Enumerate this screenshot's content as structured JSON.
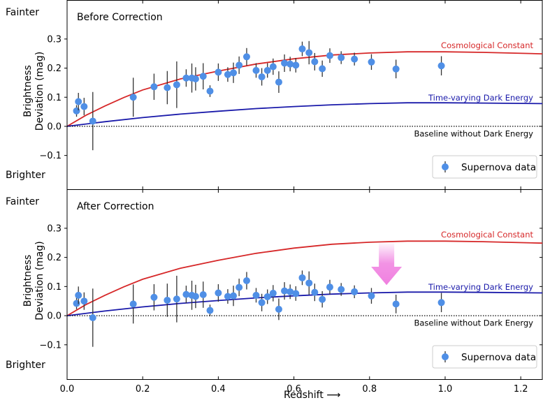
{
  "chart_data": [
    {
      "type": "scatter",
      "title": "Before Correction",
      "ylabel": "Brightness Deviation (mag)",
      "xlabel": "",
      "xlim": [
        0,
        1.257
      ],
      "ylim": [
        -0.216,
        0.434
      ],
      "yticks": [
        -0.1,
        0.0,
        0.1,
        0.2,
        0.3
      ],
      "ytick_labels": [
        "−0.1",
        "0.0",
        "0.1",
        "0.2",
        "0.3"
      ],
      "side_labels": {
        "top": "Fainter",
        "bottom": "Brighter"
      },
      "grid": false,
      "legend": {
        "placement": "lower-right",
        "entries": [
          "Supernova data"
        ]
      },
      "series": [
        {
          "name": "Supernova data",
          "color": "#4f8fe6",
          "points": [
            [
              0.025,
              0.053,
              0.02
            ],
            [
              0.03,
              0.085,
              0.03
            ],
            [
              0.045,
              0.068,
              0.03
            ],
            [
              0.068,
              0.018,
              0.1
            ],
            [
              0.175,
              0.1,
              0.067
            ],
            [
              0.23,
              0.136,
              0.045
            ],
            [
              0.265,
              0.133,
              0.057
            ],
            [
              0.29,
              0.143,
              0.08
            ],
            [
              0.315,
              0.166,
              0.03
            ],
            [
              0.33,
              0.166,
              0.05
            ],
            [
              0.34,
              0.163,
              0.04
            ],
            [
              0.36,
              0.172,
              0.045
            ],
            [
              0.378,
              0.121,
              0.02
            ],
            [
              0.4,
              0.186,
              0.03
            ],
            [
              0.425,
              0.178,
              0.025
            ],
            [
              0.44,
              0.184,
              0.035
            ],
            [
              0.455,
              0.21,
              0.03
            ],
            [
              0.475,
              0.239,
              0.03
            ],
            [
              0.5,
              0.192,
              0.025
            ],
            [
              0.515,
              0.17,
              0.03
            ],
            [
              0.53,
              0.192,
              0.025
            ],
            [
              0.545,
              0.205,
              0.028
            ],
            [
              0.56,
              0.152,
              0.037
            ],
            [
              0.575,
              0.217,
              0.03
            ],
            [
              0.59,
              0.214,
              0.025
            ],
            [
              0.605,
              0.21,
              0.025
            ],
            [
              0.622,
              0.266,
              0.025
            ],
            [
              0.64,
              0.253,
              0.04
            ],
            [
              0.655,
              0.222,
              0.03
            ],
            [
              0.675,
              0.198,
              0.028
            ],
            [
              0.695,
              0.243,
              0.025
            ],
            [
              0.725,
              0.236,
              0.022
            ],
            [
              0.76,
              0.231,
              0.022
            ],
            [
              0.805,
              0.221,
              0.027
            ],
            [
              0.87,
              0.197,
              0.032
            ],
            [
              0.99,
              0.208,
              0.033
            ]
          ]
        },
        {
          "name": "Cosmological Constant",
          "color": "#d62728",
          "line": [
            [
              0,
              0
            ],
            [
              0.05,
              0.038
            ],
            [
              0.1,
              0.07
            ],
            [
              0.15,
              0.099
            ],
            [
              0.2,
              0.125
            ],
            [
              0.3,
              0.163
            ],
            [
              0.4,
              0.19
            ],
            [
              0.5,
              0.214
            ],
            [
              0.6,
              0.232
            ],
            [
              0.7,
              0.245
            ],
            [
              0.8,
              0.252
            ],
            [
              0.9,
              0.256
            ],
            [
              1.0,
              0.256
            ],
            [
              1.1,
              0.254
            ],
            [
              1.257,
              0.249
            ]
          ]
        },
        {
          "name": "Time-varying Dark Energy",
          "color": "#1a1aaa",
          "line": [
            [
              0,
              0
            ],
            [
              0.1,
              0.016
            ],
            [
              0.2,
              0.03
            ],
            [
              0.3,
              0.042
            ],
            [
              0.4,
              0.052
            ],
            [
              0.5,
              0.061
            ],
            [
              0.6,
              0.068
            ],
            [
              0.7,
              0.074
            ],
            [
              0.8,
              0.078
            ],
            [
              0.9,
              0.081
            ],
            [
              1.0,
              0.081
            ],
            [
              1.1,
              0.08
            ],
            [
              1.257,
              0.078
            ]
          ]
        },
        {
          "name": "Baseline without Dark Energy",
          "color": "#000000",
          "style": "dotted",
          "line": [
            [
              0,
              0
            ],
            [
              1.257,
              0
            ]
          ]
        }
      ]
    },
    {
      "type": "scatter",
      "title": "After Correction",
      "ylabel": "Brightness Deviation (mag)",
      "xlabel": "Redshift ⟶",
      "xlim": [
        0,
        1.257
      ],
      "ylim": [
        -0.218,
        0.434
      ],
      "xticks": [
        0.0,
        0.2,
        0.4,
        0.6,
        0.8,
        1.0,
        1.2
      ],
      "xtick_labels": [
        "0.0",
        "0.2",
        "0.4",
        "0.6",
        "0.8",
        "1.0",
        "1.2"
      ],
      "yticks": [
        -0.1,
        0.0,
        0.1,
        0.2,
        0.3
      ],
      "ytick_labels": [
        "−0.1",
        "0.0",
        "0.1",
        "0.2",
        "0.3"
      ],
      "side_labels": {
        "top": "Fainter",
        "bottom": "Brighter"
      },
      "grid": false,
      "legend": {
        "placement": "lower-right",
        "entries": [
          "Supernova data"
        ]
      },
      "annotation": {
        "type": "arrow",
        "color": "#f080e0",
        "from": [
          0.845,
          0.255
        ],
        "to": [
          0.845,
          0.105
        ]
      },
      "series": [
        {
          "name": "Supernova data",
          "color": "#4f8fe6",
          "points": [
            [
              0.025,
              0.042,
              0.02
            ],
            [
              0.03,
              0.07,
              0.03
            ],
            [
              0.045,
              0.05,
              0.03
            ],
            [
              0.068,
              -0.007,
              0.1
            ],
            [
              0.175,
              0.04,
              0.067
            ],
            [
              0.23,
              0.063,
              0.045
            ],
            [
              0.265,
              0.053,
              0.057
            ],
            [
              0.29,
              0.057,
              0.08
            ],
            [
              0.315,
              0.073,
              0.03
            ],
            [
              0.33,
              0.07,
              0.05
            ],
            [
              0.34,
              0.066,
              0.04
            ],
            [
              0.36,
              0.072,
              0.045
            ],
            [
              0.378,
              0.018,
              0.02
            ],
            [
              0.4,
              0.078,
              0.03
            ],
            [
              0.425,
              0.066,
              0.025
            ],
            [
              0.44,
              0.068,
              0.035
            ],
            [
              0.455,
              0.097,
              0.03
            ],
            [
              0.475,
              0.12,
              0.03
            ],
            [
              0.5,
              0.07,
              0.025
            ],
            [
              0.515,
              0.045,
              0.03
            ],
            [
              0.53,
              0.065,
              0.025
            ],
            [
              0.545,
              0.077,
              0.028
            ],
            [
              0.56,
              0.022,
              0.037
            ],
            [
              0.575,
              0.085,
              0.03
            ],
            [
              0.59,
              0.082,
              0.025
            ],
            [
              0.605,
              0.076,
              0.025
            ],
            [
              0.622,
              0.13,
              0.025
            ],
            [
              0.64,
              0.112,
              0.04
            ],
            [
              0.655,
              0.08,
              0.03
            ],
            [
              0.675,
              0.056,
              0.028
            ],
            [
              0.695,
              0.098,
              0.025
            ],
            [
              0.725,
              0.09,
              0.022
            ],
            [
              0.76,
              0.082,
              0.022
            ],
            [
              0.805,
              0.068,
              0.027
            ],
            [
              0.87,
              0.04,
              0.032
            ],
            [
              0.99,
              0.045,
              0.033
            ]
          ]
        },
        {
          "name": "Cosmological Constant",
          "color": "#d62728",
          "line": [
            [
              0,
              0
            ],
            [
              0.05,
              0.038
            ],
            [
              0.1,
              0.07
            ],
            [
              0.15,
              0.099
            ],
            [
              0.2,
              0.125
            ],
            [
              0.3,
              0.163
            ],
            [
              0.4,
              0.19
            ],
            [
              0.5,
              0.214
            ],
            [
              0.6,
              0.232
            ],
            [
              0.7,
              0.245
            ],
            [
              0.8,
              0.252
            ],
            [
              0.9,
              0.256
            ],
            [
              1.0,
              0.256
            ],
            [
              1.1,
              0.254
            ],
            [
              1.257,
              0.249
            ]
          ]
        },
        {
          "name": "Time-varying Dark Energy",
          "color": "#1a1aaa",
          "line": [
            [
              0,
              0
            ],
            [
              0.1,
              0.016
            ],
            [
              0.2,
              0.03
            ],
            [
              0.3,
              0.042
            ],
            [
              0.4,
              0.052
            ],
            [
              0.5,
              0.061
            ],
            [
              0.6,
              0.068
            ],
            [
              0.7,
              0.074
            ],
            [
              0.8,
              0.078
            ],
            [
              0.9,
              0.081
            ],
            [
              1.0,
              0.081
            ],
            [
              1.1,
              0.08
            ],
            [
              1.257,
              0.078
            ]
          ]
        },
        {
          "name": "Baseline without Dark Energy",
          "color": "#000000",
          "style": "dotted",
          "line": [
            [
              0,
              0
            ],
            [
              1.257,
              0
            ]
          ]
        }
      ]
    }
  ]
}
